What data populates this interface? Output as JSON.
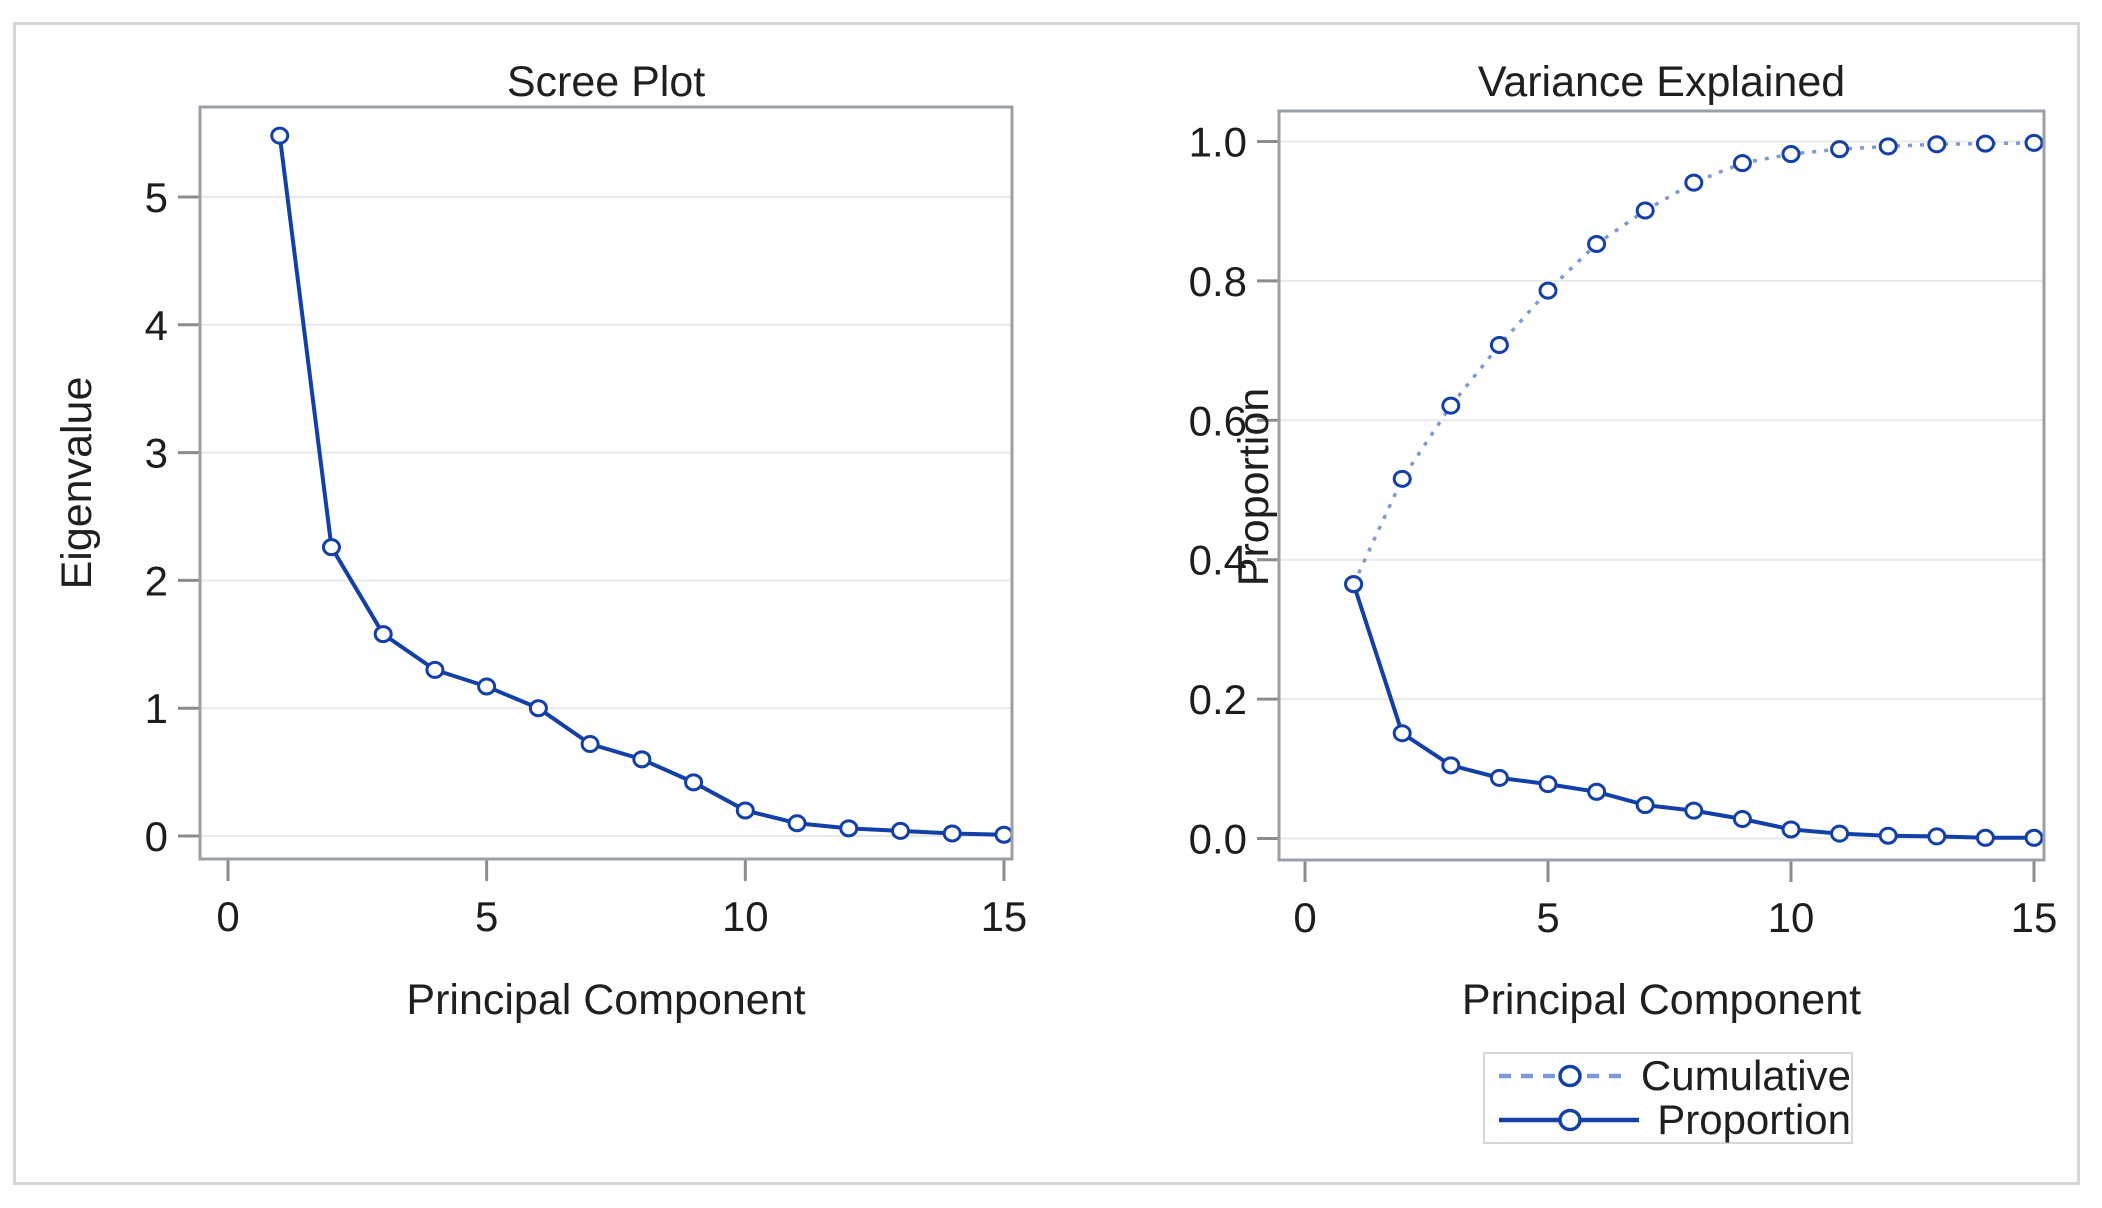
{
  "colors": {
    "line_dark": "#123fa8",
    "line_light": "#7d9ad4",
    "marker_fill": "#ffffff",
    "grid": "#e9e9e9",
    "frame": "#9ba0a6",
    "tick": "#8c8c8c",
    "text": "#1d1d1d",
    "figure_border": "#d6d6da",
    "legend_border": "#d7d7d7"
  },
  "chart_data": [
    {
      "type": "line",
      "title": "Scree Plot",
      "xlabel": "Principal Component",
      "ylabel": "Eigenvalue",
      "x": [
        1,
        2,
        3,
        4,
        5,
        6,
        7,
        8,
        9,
        10,
        11,
        12,
        13,
        14,
        15
      ],
      "xticks": [
        0,
        5,
        10,
        15
      ],
      "xtick_labels": [
        "0",
        "5",
        "10",
        "15"
      ],
      "yticks": [
        0,
        1,
        2,
        3,
        4,
        5
      ],
      "ytick_labels": [
        "0",
        "1",
        "2",
        "3",
        "4",
        "5"
      ],
      "xlim": [
        -0.55,
        15.65
      ],
      "ylim": [
        -0.18,
        5.7
      ],
      "grid": "horizontal",
      "legend": "none",
      "series": [
        {
          "name": "Eigenvalue",
          "style": "solid",
          "color": "dark",
          "marker": "circle",
          "values": [
            5.48,
            2.26,
            1.58,
            1.3,
            1.17,
            1.0,
            0.72,
            0.6,
            0.42,
            0.2,
            0.1,
            0.06,
            0.04,
            0.02,
            0.01
          ]
        }
      ]
    },
    {
      "type": "line",
      "title": "Variance Explained",
      "xlabel": "Principal Component",
      "ylabel": "Proportion",
      "x": [
        1,
        2,
        3,
        4,
        5,
        6,
        7,
        8,
        9,
        10,
        11,
        12,
        13,
        14,
        15
      ],
      "xticks": [
        0,
        5,
        10,
        15
      ],
      "xtick_labels": [
        "0",
        "5",
        "10",
        "15"
      ],
      "yticks": [
        0.0,
        0.2,
        0.4,
        0.6,
        0.8,
        1.0
      ],
      "ytick_labels": [
        "0.0",
        "0.2",
        "0.4",
        "0.6",
        "0.8",
        "1.0"
      ],
      "xlim": [
        -0.55,
        15.2
      ],
      "ylim": [
        -0.04,
        1.045
      ],
      "grid": "horizontal",
      "legend": "bottom",
      "series": [
        {
          "name": "Cumulative",
          "style": "dotted",
          "color": "light",
          "marker": "circle",
          "values": [
            0.365,
            0.516,
            0.621,
            0.708,
            0.786,
            0.853,
            0.901,
            0.941,
            0.969,
            0.982,
            0.989,
            0.993,
            0.996,
            0.997,
            0.998
          ]
        },
        {
          "name": "Proportion",
          "style": "solid",
          "color": "dark",
          "marker": "circle",
          "values": [
            0.365,
            0.151,
            0.105,
            0.087,
            0.078,
            0.067,
            0.048,
            0.04,
            0.028,
            0.013,
            0.007,
            0.004,
            0.003,
            0.001,
            0.001
          ]
        }
      ]
    }
  ]
}
